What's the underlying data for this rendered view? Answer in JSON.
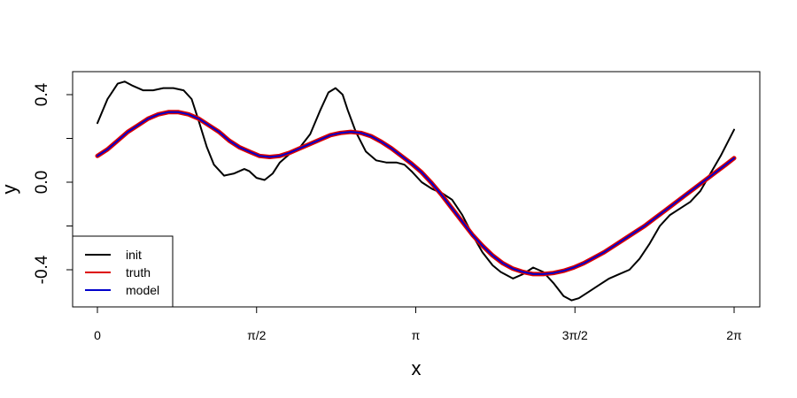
{
  "chart_data": {
    "type": "line",
    "xlabel": "x",
    "ylabel": "y",
    "xlim": [
      0,
      6.2832
    ],
    "ylim": [
      -0.55,
      0.48
    ],
    "x_ticks": [
      {
        "value": 0,
        "label": "0"
      },
      {
        "value": 1.5708,
        "label": "π/2"
      },
      {
        "value": 3.1416,
        "label": "π"
      },
      {
        "value": 4.7124,
        "label": "3π/2"
      },
      {
        "value": 6.2832,
        "label": "2π"
      }
    ],
    "y_ticks": [
      {
        "value": -0.4,
        "label": "-0.4",
        "labeled": true
      },
      {
        "value": -0.2,
        "label": "",
        "labeled": false
      },
      {
        "value": 0.0,
        "label": "0.0",
        "labeled": true
      },
      {
        "value": 0.2,
        "label": "",
        "labeled": false
      },
      {
        "value": 0.4,
        "label": "0.4",
        "labeled": true
      }
    ],
    "legend": {
      "position": "bottom-left"
    },
    "series": [
      {
        "name": "init",
        "color": "#000000",
        "x": [
          0.0,
          0.1,
          0.2,
          0.27,
          0.35,
          0.45,
          0.55,
          0.65,
          0.75,
          0.85,
          0.93,
          1.0,
          1.08,
          1.15,
          1.25,
          1.35,
          1.45,
          1.5,
          1.57,
          1.65,
          1.73,
          1.8,
          1.9,
          2.0,
          2.1,
          2.2,
          2.28,
          2.35,
          2.42,
          2.47,
          2.55,
          2.65,
          2.75,
          2.85,
          2.95,
          3.03,
          3.1,
          3.2,
          3.3,
          3.4,
          3.5,
          3.6,
          3.7,
          3.8,
          3.9,
          3.98,
          4.1,
          4.2,
          4.3,
          4.4,
          4.5,
          4.6,
          4.68,
          4.75,
          4.85,
          4.95,
          5.05,
          5.15,
          5.25,
          5.35,
          5.45,
          5.55,
          5.65,
          5.75,
          5.85,
          5.95,
          6.05,
          6.15,
          6.2832
        ],
        "y": [
          0.27,
          0.38,
          0.45,
          0.46,
          0.44,
          0.42,
          0.42,
          0.43,
          0.43,
          0.42,
          0.38,
          0.28,
          0.16,
          0.08,
          0.03,
          0.04,
          0.06,
          0.05,
          0.02,
          0.01,
          0.04,
          0.09,
          0.13,
          0.16,
          0.22,
          0.33,
          0.41,
          0.43,
          0.4,
          0.33,
          0.23,
          0.14,
          0.1,
          0.09,
          0.09,
          0.08,
          0.05,
          0.0,
          -0.03,
          -0.05,
          -0.08,
          -0.15,
          -0.24,
          -0.32,
          -0.38,
          -0.41,
          -0.44,
          -0.42,
          -0.39,
          -0.41,
          -0.46,
          -0.52,
          -0.54,
          -0.53,
          -0.5,
          -0.47,
          -0.44,
          -0.42,
          -0.4,
          -0.35,
          -0.28,
          -0.2,
          -0.15,
          -0.12,
          -0.09,
          -0.04,
          0.04,
          0.12,
          0.24
        ]
      },
      {
        "name": "truth",
        "color": "#dd0000",
        "x": [
          0.0,
          0.1,
          0.2,
          0.3,
          0.4,
          0.5,
          0.6,
          0.7,
          0.8,
          0.9,
          1.0,
          1.1,
          1.2,
          1.3,
          1.4,
          1.5,
          1.6,
          1.7,
          1.8,
          1.9,
          2.0,
          2.1,
          2.2,
          2.3,
          2.4,
          2.5,
          2.6,
          2.7,
          2.8,
          2.9,
          3.0,
          3.1,
          3.2,
          3.3,
          3.4,
          3.5,
          3.6,
          3.7,
          3.8,
          3.9,
          4.0,
          4.1,
          4.2,
          4.3,
          4.4,
          4.5,
          4.6,
          4.7,
          4.8,
          4.9,
          5.0,
          5.1,
          5.2,
          5.3,
          5.4,
          5.5,
          5.6,
          5.7,
          5.8,
          5.9,
          6.0,
          6.1,
          6.2,
          6.2832
        ],
        "y": [
          0.12,
          0.15,
          0.19,
          0.23,
          0.26,
          0.29,
          0.31,
          0.32,
          0.32,
          0.31,
          0.29,
          0.26,
          0.23,
          0.19,
          0.16,
          0.14,
          0.12,
          0.115,
          0.12,
          0.135,
          0.155,
          0.175,
          0.195,
          0.215,
          0.225,
          0.23,
          0.225,
          0.21,
          0.185,
          0.155,
          0.12,
          0.085,
          0.045,
          -0.005,
          -0.06,
          -0.12,
          -0.18,
          -0.24,
          -0.29,
          -0.335,
          -0.37,
          -0.395,
          -0.41,
          -0.42,
          -0.42,
          -0.415,
          -0.405,
          -0.39,
          -0.37,
          -0.345,
          -0.32,
          -0.29,
          -0.26,
          -0.23,
          -0.2,
          -0.165,
          -0.13,
          -0.095,
          -0.06,
          -0.025,
          0.01,
          0.045,
          0.08,
          0.11
        ]
      },
      {
        "name": "model",
        "color": "#0000cc",
        "x": [
          0.0,
          0.1,
          0.2,
          0.3,
          0.4,
          0.5,
          0.6,
          0.7,
          0.8,
          0.9,
          1.0,
          1.1,
          1.2,
          1.3,
          1.4,
          1.5,
          1.6,
          1.7,
          1.8,
          1.9,
          2.0,
          2.1,
          2.2,
          2.3,
          2.4,
          2.5,
          2.6,
          2.7,
          2.8,
          2.9,
          3.0,
          3.1,
          3.2,
          3.3,
          3.4,
          3.5,
          3.6,
          3.7,
          3.8,
          3.9,
          4.0,
          4.1,
          4.2,
          4.3,
          4.4,
          4.5,
          4.6,
          4.7,
          4.8,
          4.9,
          5.0,
          5.1,
          5.2,
          5.3,
          5.4,
          5.5,
          5.6,
          5.7,
          5.8,
          5.9,
          6.0,
          6.1,
          6.2,
          6.2832
        ],
        "y": [
          0.12,
          0.15,
          0.19,
          0.23,
          0.26,
          0.29,
          0.31,
          0.32,
          0.32,
          0.31,
          0.29,
          0.26,
          0.23,
          0.19,
          0.16,
          0.14,
          0.12,
          0.115,
          0.12,
          0.135,
          0.155,
          0.175,
          0.195,
          0.215,
          0.225,
          0.23,
          0.225,
          0.21,
          0.185,
          0.155,
          0.12,
          0.085,
          0.045,
          -0.005,
          -0.06,
          -0.12,
          -0.18,
          -0.24,
          -0.29,
          -0.335,
          -0.37,
          -0.395,
          -0.41,
          -0.42,
          -0.42,
          -0.415,
          -0.405,
          -0.39,
          -0.37,
          -0.345,
          -0.32,
          -0.29,
          -0.26,
          -0.23,
          -0.2,
          -0.165,
          -0.13,
          -0.095,
          -0.06,
          -0.025,
          0.01,
          0.045,
          0.08,
          0.11
        ]
      }
    ]
  }
}
